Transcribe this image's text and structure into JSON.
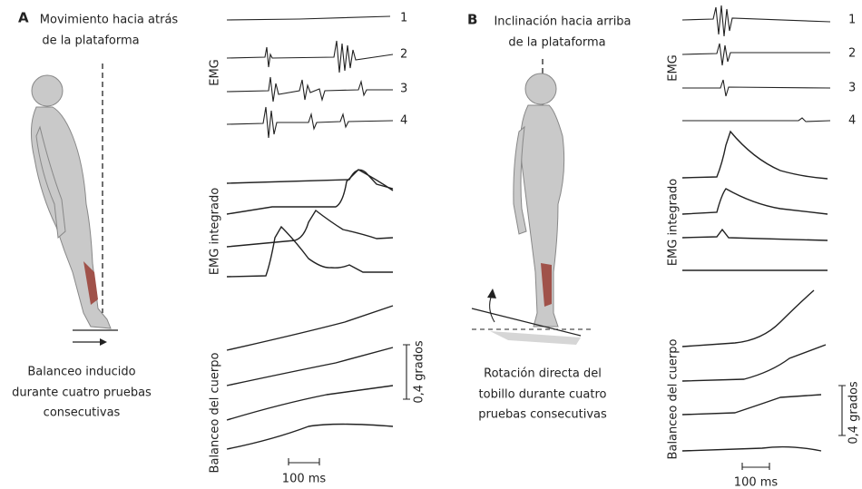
{
  "panels": [
    {
      "label": "A",
      "title": [
        "Movimiento hacia atrás",
        "de la plataforma"
      ],
      "trace_labels": [
        "1",
        "2",
        "3",
        "4"
      ],
      "emg_label": "EMG",
      "integrated_label": "EMG integrado",
      "sway_label": "Balanceo del cuerpo",
      "angle_scale": "0,4 grados",
      "time_scale": "100 ms",
      "caption": [
        "Balanceo inducido",
        "durante cuatro pruebas",
        "consecutivas"
      ]
    },
    {
      "label": "B",
      "title": [
        "Inclinación hacia arriba",
        "de la plataforma"
      ],
      "trace_labels": [
        "1",
        "2",
        "3",
        "4"
      ],
      "emg_label": "EMG",
      "integrated_label": "EMG integrado",
      "sway_label": "Balanceo del cuerpo",
      "angle_scale": "0,4 grados",
      "time_scale": "100 ms",
      "caption": [
        "Rotación directa del",
        "tobillo durante cuatro",
        "pruebas consecutivas"
      ]
    }
  ]
}
